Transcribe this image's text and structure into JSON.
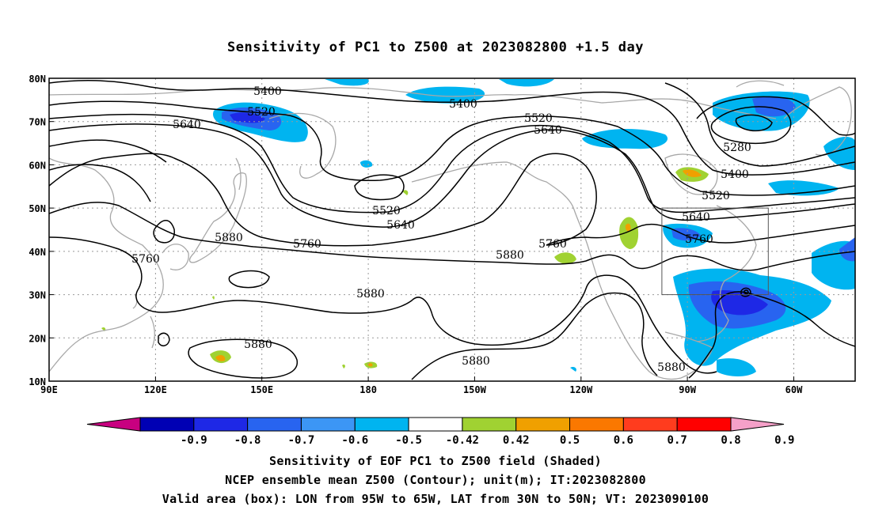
{
  "title": "Sensitivity of PC1 to Z500 at 2023082800 +1.5 day",
  "lat_labels": [
    "80N",
    "70N",
    "60N",
    "50N",
    "40N",
    "30N",
    "20N",
    "10N"
  ],
  "lon_labels": [
    "90E",
    "120E",
    "150E",
    "180",
    "150W",
    "120W",
    "90W",
    "60W"
  ],
  "contour_labels": [
    "5400",
    "5520",
    "5640",
    "5400",
    "5520",
    "5640",
    "5520",
    "5640",
    "5760",
    "5880",
    "5760",
    "5880",
    "5760",
    "5880",
    "5880",
    "5880",
    "5280",
    "5400",
    "5520",
    "5640",
    "5760",
    "5880"
  ],
  "colorbar": {
    "ticks": [
      "-0.9",
      "-0.8",
      "-0.7",
      "-0.6",
      "-0.5",
      "-0.42",
      "0.42",
      "0.5",
      "0.6",
      "0.7",
      "0.8",
      "0.9"
    ],
    "colors": [
      "#c80080",
      "#0000b4",
      "#1e28e6",
      "#2864f0",
      "#3c96f5",
      "#00b4f0",
      "#ffffff",
      "#a0d232",
      "#f0a000",
      "#fa7800",
      "#ff3c1e",
      "#ff0000",
      "#f5a0c8"
    ]
  },
  "valid_box": {
    "lon_from": "95W",
    "lon_to": "65W",
    "lat_from": "30N",
    "lat_to": "50N"
  },
  "captions": [
    "Sensitivity of EOF PC1 to Z500 field (Shaded)",
    "NCEP ensemble mean Z500 (Contour); unit(m); IT:2023082800",
    "Valid area (box): LON from 95W to 65W, LAT from 30N to 50N; VT: 2023090100"
  ]
}
